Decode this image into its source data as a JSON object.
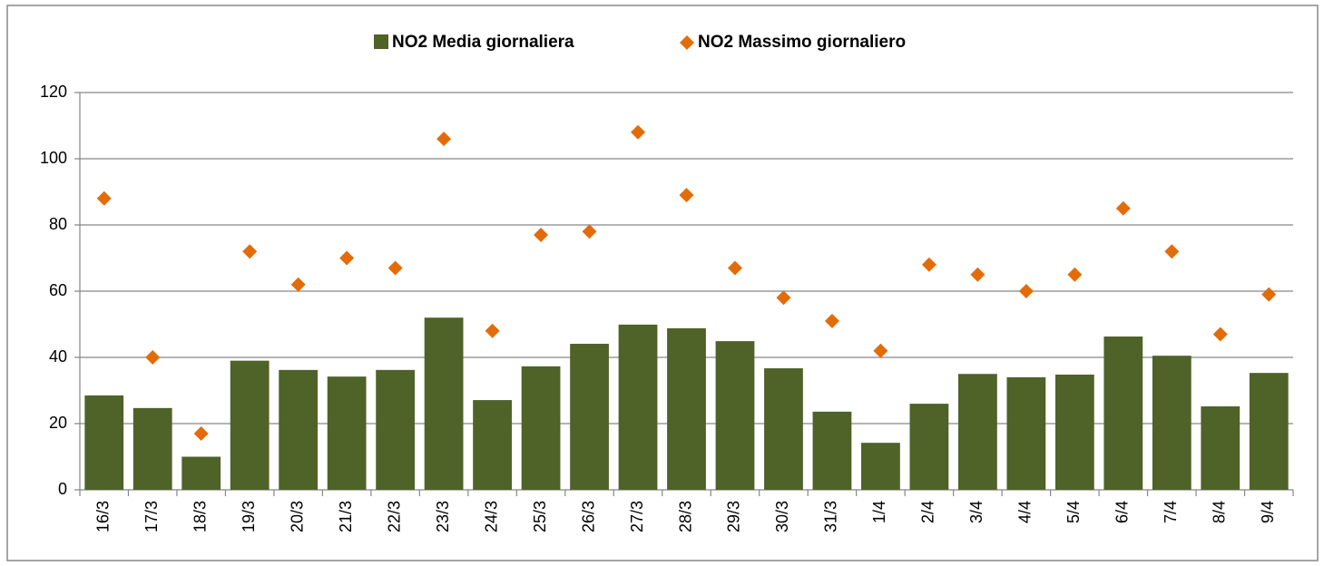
{
  "chart_data": {
    "type": "bar",
    "categories": [
      "16/3",
      "17/3",
      "18/3",
      "19/3",
      "20/3",
      "21/3",
      "22/3",
      "23/3",
      "24/3",
      "25/3",
      "26/3",
      "27/3",
      "28/3",
      "29/3",
      "30/3",
      "31/3",
      "1/4",
      "2/4",
      "3/4",
      "4/4",
      "5/4",
      "6/4",
      "7/4",
      "8/4",
      "9/4"
    ],
    "series": [
      {
        "name": "NO2 Media giornaliera",
        "type": "bar",
        "color": "#4f6228",
        "values": [
          28.5,
          24.7,
          10,
          39,
          36.2,
          34.2,
          36.2,
          52,
          27.1,
          37.3,
          44.1,
          49.9,
          48.8,
          44.9,
          36.7,
          23.6,
          14.2,
          26,
          35,
          34,
          34.8,
          46.3,
          40.5,
          25.2,
          35.3
        ]
      },
      {
        "name": "NO2 Massimo giornaliero",
        "type": "scatter",
        "marker": "diamond",
        "color": "#e36c09",
        "values": [
          88,
          40,
          17,
          72,
          62,
          70,
          67,
          106,
          48,
          77,
          78,
          108,
          89,
          67,
          58,
          51,
          42,
          68,
          65,
          60,
          65,
          85,
          72,
          47,
          59
        ]
      }
    ],
    "ylim": [
      0,
      120
    ],
    "yticks": [
      0,
      20,
      40,
      60,
      80,
      100,
      120
    ],
    "grid": true,
    "legend": "top"
  }
}
